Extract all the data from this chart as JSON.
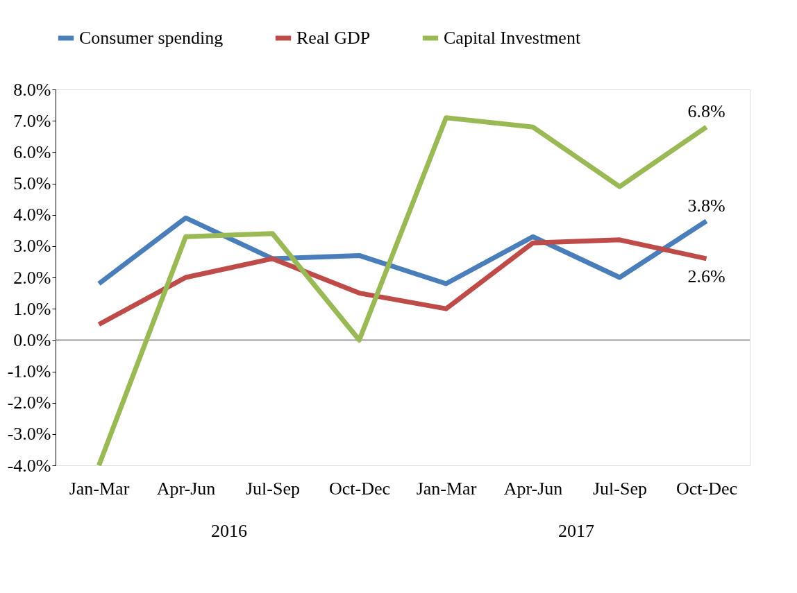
{
  "chart_data": {
    "type": "line",
    "categories": [
      "Jan-Mar",
      "Apr-Jun",
      "Jul-Sep",
      "Oct-Dec",
      "Jan-Mar",
      "Apr-Jun",
      "Jul-Sep",
      "Oct-Dec"
    ],
    "series": [
      {
        "name": "Consumer spending",
        "color": "#4a7ebb",
        "values": [
          1.8,
          3.9,
          2.6,
          2.7,
          1.8,
          3.3,
          2.0,
          3.8
        ],
        "value_labels": [
          null,
          null,
          null,
          null,
          null,
          null,
          null,
          "3.8%"
        ]
      },
      {
        "name": "Real GDP",
        "color": "#be4b48",
        "values": [
          0.5,
          2.0,
          2.6,
          1.5,
          1.0,
          3.1,
          3.2,
          2.6
        ],
        "value_labels": [
          null,
          null,
          null,
          null,
          null,
          null,
          null,
          "2.6%"
        ]
      },
      {
        "name": "Capital Investment",
        "color": "#98b954",
        "values": [
          -4.0,
          3.3,
          3.4,
          0.0,
          7.1,
          6.8,
          4.9,
          6.8
        ],
        "value_labels": [
          null,
          null,
          null,
          null,
          null,
          null,
          null,
          "6.8%"
        ]
      }
    ],
    "ylim": [
      -4,
      8
    ],
    "yticks": [
      {
        "value": -4,
        "label": "-4.0%"
      },
      {
        "value": -3,
        "label": "-3.0%"
      },
      {
        "value": -2,
        "label": "-2.0%"
      },
      {
        "value": -1,
        "label": "-1.0%"
      },
      {
        "value": 0,
        "label": "0.0%"
      },
      {
        "value": 1,
        "label": "1.0%"
      },
      {
        "value": 2,
        "label": "2.0%"
      },
      {
        "value": 3,
        "label": "3.0%"
      },
      {
        "value": 4,
        "label": "4.0%"
      },
      {
        "value": 5,
        "label": "5.0%"
      },
      {
        "value": 6,
        "label": "6.0%"
      },
      {
        "value": 7,
        "label": "7.0%"
      },
      {
        "value": 8,
        "label": "8.0%"
      }
    ],
    "ref_lines": [
      {
        "axis": "y",
        "value": 0,
        "color": "#868686"
      }
    ],
    "annotations": [
      "2016",
      "2017"
    ],
    "grid": false,
    "legend": "top",
    "marker": "none",
    "line_style": "solid"
  }
}
